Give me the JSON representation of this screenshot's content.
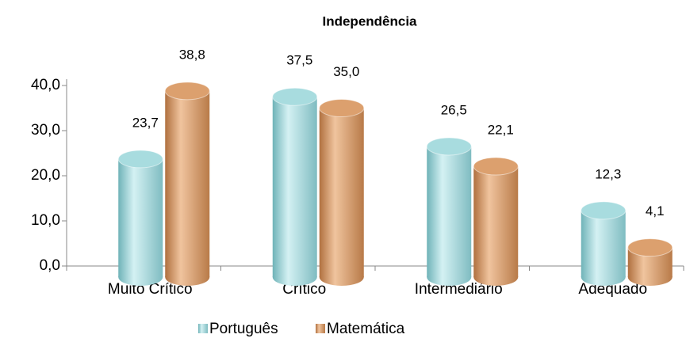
{
  "chart_data": {
    "type": "bar3d",
    "title": "Independência",
    "categories": [
      "Muito Crítico",
      "Crítico",
      "Intermediário",
      "Adequado"
    ],
    "series": [
      {
        "name": "Português",
        "color": "#a8dcdf",
        "values": [
          23.7,
          37.5,
          26.5,
          12.3
        ],
        "value_labels": [
          "23,7",
          "37,5",
          "26,5",
          "12,3"
        ]
      },
      {
        "name": "Matemática",
        "color": "#dca06e",
        "values": [
          38.8,
          35.0,
          22.1,
          4.1
        ],
        "value_labels": [
          "38,8",
          "35,0",
          "22,1",
          "4,1"
        ]
      }
    ],
    "ylim": [
      0,
      40
    ],
    "yticks": [
      {
        "value": 0,
        "label": "0,0"
      },
      {
        "value": 10,
        "label": "10,0"
      },
      {
        "value": 20,
        "label": "20,0"
      },
      {
        "value": 30,
        "label": "30,0"
      },
      {
        "value": 40,
        "label": "40,0"
      }
    ],
    "grid": false,
    "legend": "bottom"
  }
}
